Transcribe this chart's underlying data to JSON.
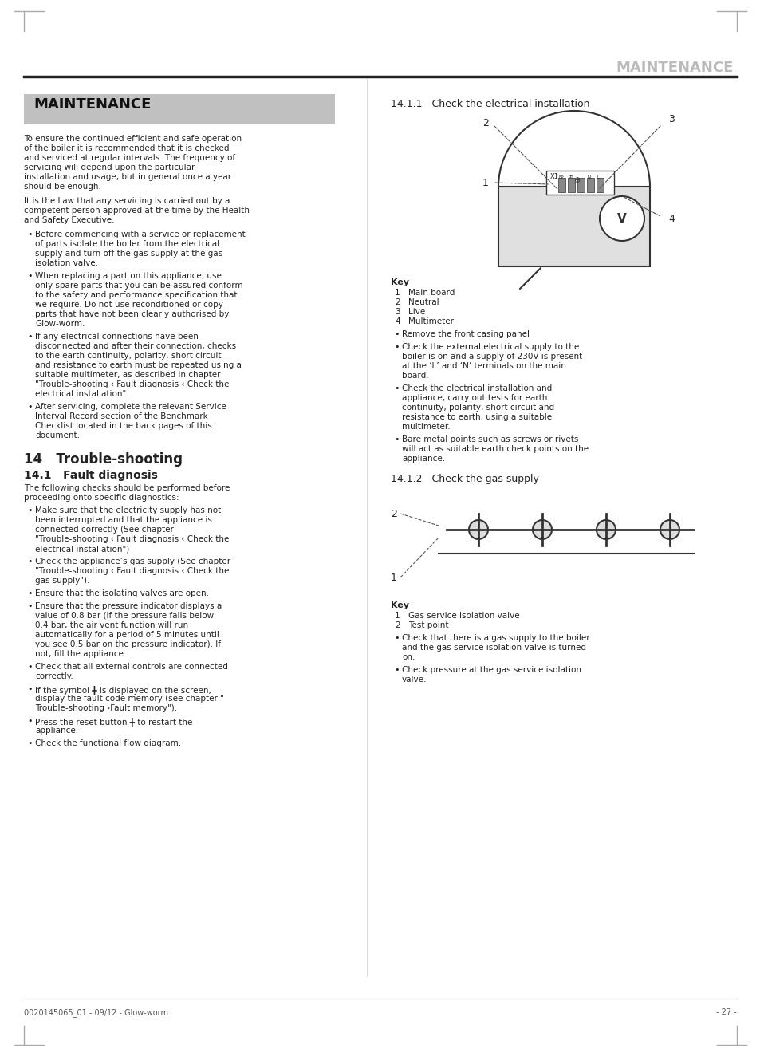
{
  "page_title": "MAINTENANCE",
  "header_rule_color": "#222222",
  "background_color": "#ffffff",
  "text_color": "#222222",
  "light_text_color": "#888888",
  "header_bg_color": "#c8c8c8",
  "section_left_title": "MAINTENANCE",
  "left_para1": "To ensure the continued efficient and safe operation of the boiler it is recommended that it is checked and serviced at regular intervals. The frequency of servicing will depend upon the particular installation and usage, but in general once a year should be enough.",
  "left_para2": "It is the Law that any servicing is carried out by a competent person approved at the time by the Health and Safety Executive.",
  "left_bullets": [
    "Before commencing with a service or replacement of parts isolate the boiler from the electrical supply and turn off the gas supply at the gas isolation valve.",
    "When replacing a part on this appliance, use only spare parts that you can be assured conform to the safety and performance specification that we require. Do not use reconditioned or copy parts that have not been clearly authorised by Glow-worm.",
    "If any electrical connections have been disconnected and after their connection, checks to the earth continuity, polarity, short circuit and resistance to earth must be repeated using a suitable multimeter, as described in chapter \"Trouble-shooting ‹ Fault diagnosis ‹ Check the electrical installation\".",
    "After servicing, complete the relevant Service Interval Record section of the Benchmark Checklist located in the back pages of this document."
  ],
  "section14_title": "14   Trouble-shooting",
  "section141_title": "14.1   Fault diagnosis",
  "fault_diag_intro": "The following checks should be performed before proceeding onto specific diagnostics:",
  "fault_diag_bullets": [
    "Make sure that the electricity supply has not been interrupted and that the appliance is connected correctly (See chapter \"Trouble-shooting ‹ Fault diagnosis ‹ Check the electrical installation\")",
    "Check the appliance’s gas supply (See chapter \"Trouble-shooting ‹ Fault diagnosis ‹ Check the gas supply\").",
    "Ensure that the isolating valves are open.",
    "Ensure that the pressure indicator displays a value of 0.8 bar (if the pressure falls below 0.4 bar, the air vent function will run automatically for a period of 5 minutes until you see 0.5 bar on the pressure indicator). If not, fill the appliance.",
    "Check that all external controls are connected correctly.",
    "If the symbol ╋ is displayed on the screen, display the fault code memory (see chapter \" Trouble-shooting ›Fault memory\").",
    "Press the reset button ╋ to restart the appliance.",
    "Check the functional flow diagram."
  ],
  "section1411_title": "14.1.1   Check the electrical installation",
  "elec_key_title": "Key",
  "elec_key_items": [
    "Main board",
    "Neutral",
    "Live",
    "Multimeter"
  ],
  "elec_key_nums": [
    "1",
    "2",
    "3",
    "4"
  ],
  "elec_bullets": [
    "Remove the front casing panel",
    "Check the external electrical supply to the boiler is on and a supply of 230V is present at the ‘L’ and ‘N’ terminals on the main board.",
    "Check the electrical installation and appliance, carry out tests for earth continuity, polarity, short circuit and resistance to earth, using a suitable multimeter.",
    "Bare metal points such as screws or rivets will act as suitable earth check points on the appliance."
  ],
  "section1412_title": "14.1.2   Check the gas supply",
  "gas_key_title": "Key",
  "gas_key_items": [
    "Gas service isolation valve",
    "Test point"
  ],
  "gas_key_nums": [
    "1",
    "2"
  ],
  "gas_bullets": [
    "Check that there is a gas supply to the boiler and the gas service isolation valve is turned on.",
    "Check pressure at the gas service isolation valve."
  ],
  "footer_left": "0020145065_01 - 09/12 - Glow-worm",
  "footer_right": "- 27 -"
}
